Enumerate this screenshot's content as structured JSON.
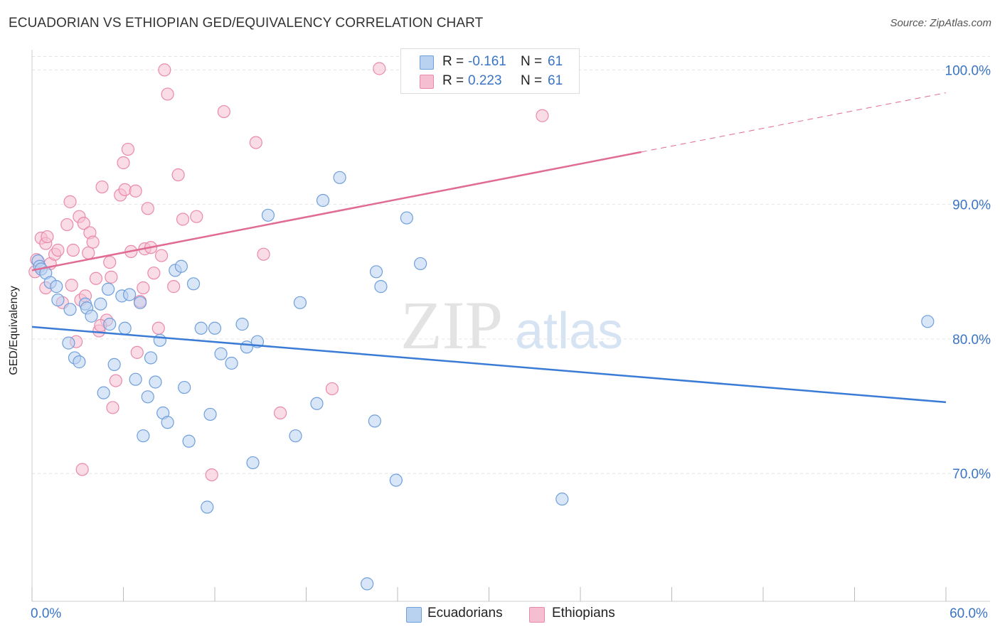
{
  "title": "ECUADORIAN VS ETHIOPIAN GED/EQUIVALENCY CORRELATION CHART",
  "source": "Source: ZipAtlas.com",
  "watermark": {
    "zip": "ZIP",
    "atlas": "atlas"
  },
  "legend": {
    "r_label": "R =",
    "n_label": "N =",
    "rows": [
      {
        "r": "-0.161",
        "n": "61"
      },
      {
        "r": "0.223",
        "n": "61"
      }
    ]
  },
  "bottom_legend": [
    "Ecuadorians",
    "Ethiopians"
  ],
  "colors": {
    "blue_fill": "#b9d2f0",
    "blue_stroke": "#6f9fdc",
    "blue_line": "#3a7bd5",
    "pink_fill": "#f6bfd1",
    "pink_stroke": "#e98aa9",
    "pink_line": "#e06b93",
    "tick_label": "#3a74c4",
    "grid": "#e4e4e4"
  },
  "chart_data": {
    "type": "scatter",
    "title": "ECUADORIAN VS ETHIOPIAN GED/EQUIVALENCY CORRELATION CHART",
    "xlabel": "",
    "ylabel": "GED/Equivalency",
    "xlim": [
      0,
      60
    ],
    "ylim": [
      60.5,
      101.5
    ],
    "x_tick_labels": [
      {
        "value": 0,
        "label": "0.0%"
      },
      {
        "value": 60,
        "label": "60.0%"
      }
    ],
    "y_tick_labels": [
      {
        "value": 70,
        "label": "70.0%"
      },
      {
        "value": 80,
        "label": "80.0%"
      },
      {
        "value": 90,
        "label": "90.0%"
      },
      {
        "value": 100,
        "label": "100.0%"
      }
    ],
    "grid": true,
    "legend_position": "top-center",
    "series": [
      {
        "name": "Ecuadorians",
        "points": [
          [
            0.4,
            85.8
          ],
          [
            0.5,
            85.4
          ],
          [
            0.6,
            85.2
          ],
          [
            0.9,
            84.9
          ],
          [
            1.2,
            84.2
          ],
          [
            1.6,
            83.9
          ],
          [
            1.7,
            82.9
          ],
          [
            2.5,
            82.2
          ],
          [
            2.4,
            79.7
          ],
          [
            2.8,
            78.6
          ],
          [
            3.1,
            78.3
          ],
          [
            3.5,
            82.6
          ],
          [
            3.6,
            82.3
          ],
          [
            3.9,
            81.7
          ],
          [
            4.5,
            82.6
          ],
          [
            4.7,
            76.0
          ],
          [
            5.0,
            83.7
          ],
          [
            5.1,
            81.1
          ],
          [
            5.4,
            78.1
          ],
          [
            5.9,
            83.2
          ],
          [
            6.1,
            80.8
          ],
          [
            6.8,
            77.0
          ],
          [
            6.4,
            83.3
          ],
          [
            7.1,
            82.7
          ],
          [
            7.3,
            72.8
          ],
          [
            7.6,
            75.7
          ],
          [
            7.8,
            78.6
          ],
          [
            8.1,
            76.8
          ],
          [
            8.4,
            79.9
          ],
          [
            8.6,
            74.5
          ],
          [
            8.9,
            73.8
          ],
          [
            9.4,
            85.1
          ],
          [
            9.8,
            85.4
          ],
          [
            10.0,
            76.4
          ],
          [
            10.3,
            72.4
          ],
          [
            10.6,
            84.1
          ],
          [
            11.1,
            80.8
          ],
          [
            11.5,
            67.5
          ],
          [
            11.7,
            74.4
          ],
          [
            12.0,
            80.8
          ],
          [
            12.4,
            78.9
          ],
          [
            13.1,
            78.2
          ],
          [
            13.8,
            81.1
          ],
          [
            14.1,
            79.4
          ],
          [
            14.5,
            70.8
          ],
          [
            14.8,
            79.8
          ],
          [
            15.5,
            89.2
          ],
          [
            17.3,
            72.8
          ],
          [
            17.6,
            82.7
          ],
          [
            18.7,
            75.2
          ],
          [
            19.1,
            90.3
          ],
          [
            20.2,
            92.0
          ],
          [
            22.5,
            73.9
          ],
          [
            22.6,
            85.0
          ],
          [
            22.9,
            83.9
          ],
          [
            23.9,
            69.5
          ],
          [
            24.6,
            89.0
          ],
          [
            25.5,
            85.6
          ],
          [
            34.8,
            68.1
          ],
          [
            22.0,
            61.8
          ],
          [
            58.8,
            81.3
          ]
        ]
      },
      {
        "name": "Ethiopians",
        "points": [
          [
            0.2,
            85.0
          ],
          [
            0.3,
            85.9
          ],
          [
            0.6,
            87.5
          ],
          [
            0.9,
            87.1
          ],
          [
            1.0,
            87.6
          ],
          [
            1.2,
            85.6
          ],
          [
            1.5,
            86.3
          ],
          [
            1.7,
            86.6
          ],
          [
            2.0,
            82.7
          ],
          [
            2.3,
            88.5
          ],
          [
            2.5,
            90.2
          ],
          [
            2.7,
            86.6
          ],
          [
            2.9,
            79.8
          ],
          [
            3.1,
            89.1
          ],
          [
            3.2,
            82.9
          ],
          [
            3.4,
            88.6
          ],
          [
            3.5,
            83.2
          ],
          [
            3.7,
            86.4
          ],
          [
            3.8,
            87.9
          ],
          [
            4.0,
            87.2
          ],
          [
            4.2,
            84.5
          ],
          [
            4.4,
            80.6
          ],
          [
            4.6,
            91.3
          ],
          [
            4.9,
            81.4
          ],
          [
            5.1,
            85.7
          ],
          [
            5.2,
            84.6
          ],
          [
            5.3,
            74.9
          ],
          [
            5.5,
            76.9
          ],
          [
            5.8,
            90.7
          ],
          [
            6.0,
            93.1
          ],
          [
            6.1,
            91.1
          ],
          [
            6.3,
            94.1
          ],
          [
            6.5,
            86.5
          ],
          [
            6.8,
            91.0
          ],
          [
            7.1,
            82.8
          ],
          [
            7.3,
            83.8
          ],
          [
            7.4,
            86.7
          ],
          [
            7.6,
            89.7
          ],
          [
            7.8,
            86.8
          ],
          [
            8.3,
            80.8
          ],
          [
            8.5,
            86.2
          ],
          [
            8.7,
            100.0
          ],
          [
            8.9,
            98.2
          ],
          [
            9.3,
            83.9
          ],
          [
            9.6,
            92.2
          ],
          [
            9.9,
            88.9
          ],
          [
            10.8,
            89.1
          ],
          [
            11.8,
            69.9
          ],
          [
            12.6,
            96.9
          ],
          [
            14.7,
            94.6
          ],
          [
            15.2,
            86.3
          ],
          [
            16.3,
            74.5
          ],
          [
            19.7,
            76.3
          ],
          [
            22.8,
            100.1
          ],
          [
            33.5,
            96.6
          ],
          [
            0.9,
            83.8
          ],
          [
            2.6,
            84.0
          ],
          [
            3.3,
            70.3
          ],
          [
            4.5,
            81.0
          ],
          [
            6.9,
            79.0
          ],
          [
            8.0,
            84.9
          ]
        ]
      }
    ],
    "trend_lines": [
      {
        "series": "Ecuadorians",
        "x": [
          0,
          60
        ],
        "y": [
          80.9,
          75.3
        ],
        "style": "solid"
      },
      {
        "series": "Ethiopians",
        "x": [
          0,
          40
        ],
        "y": [
          85.1,
          93.9
        ],
        "style": "solid"
      },
      {
        "series": "Ethiopians",
        "x": [
          40,
          60
        ],
        "y": [
          93.9,
          98.3
        ],
        "style": "dashed"
      }
    ]
  }
}
